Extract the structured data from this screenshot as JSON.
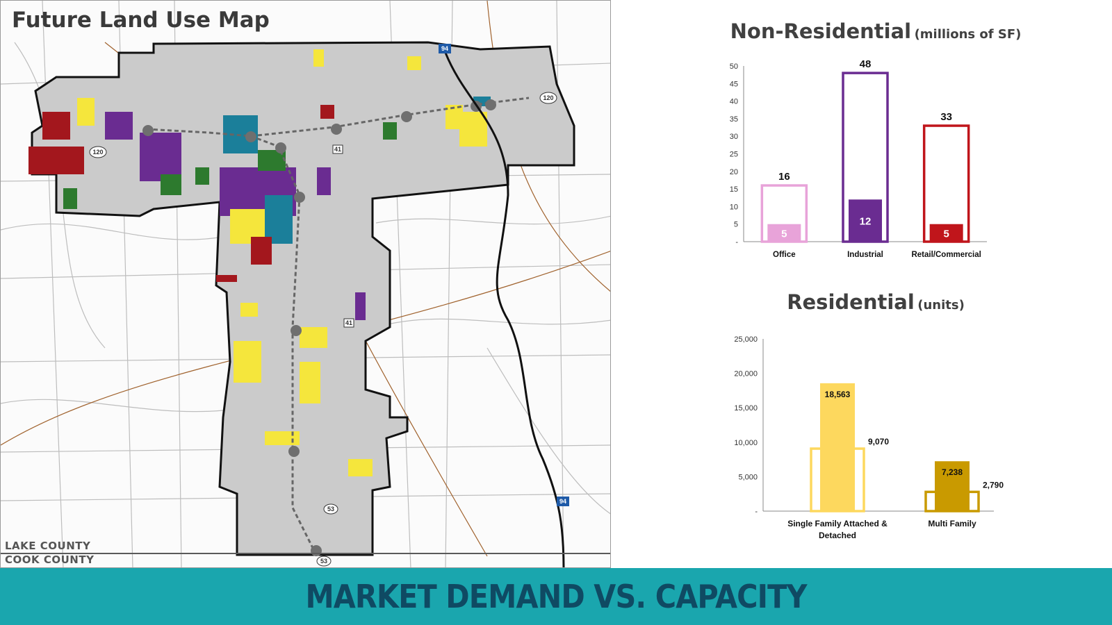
{
  "map": {
    "title": "Future Land Use Map",
    "county_north": "LAKE COUNTY",
    "county_south": "COOK COUNTY",
    "highway_shields": [
      "94",
      "120",
      "120",
      "41",
      "41",
      "53",
      "53",
      "94"
    ],
    "colors": {
      "base": "#c8c8c8",
      "industrial": "#6a2c91",
      "residential": "#f5e63c",
      "commercial": "#a3171d",
      "office": "#1b7f9a",
      "green": "#2d7a2e"
    }
  },
  "chart_data": [
    {
      "type": "bar",
      "title": "Non-Residential",
      "unit_note": "(millions of SF)",
      "categories": [
        "Office",
        "Industrial",
        "Retail/Commercial"
      ],
      "series": [
        {
          "values": [
            16,
            48,
            33
          ],
          "colors": [
            "#e8a3d9",
            "#6a2c91",
            "#c0151b"
          ],
          "style": "outline"
        },
        {
          "values": [
            5,
            12,
            5
          ],
          "colors": [
            "#e8a3d9",
            "#6a2c91",
            "#c0151b"
          ],
          "style": "filled"
        }
      ],
      "ylim": [
        0,
        50
      ],
      "yticks": [
        "-",
        "5",
        "10",
        "15",
        "20",
        "25",
        "30",
        "35",
        "40",
        "45",
        "50"
      ],
      "grid": false
    },
    {
      "type": "bar",
      "title": "Residential",
      "unit_note": "(units)",
      "categories": [
        "Single Family Attached & Detached",
        "Multi Family"
      ],
      "series": [
        {
          "values": [
            18563,
            7238
          ],
          "labels": [
            "18,563",
            "7,238"
          ],
          "colors": [
            "#fdd85e",
            "#c99a00"
          ],
          "style": "filled"
        },
        {
          "values": [
            9070,
            2790
          ],
          "labels": [
            "9,070",
            "2,790"
          ],
          "colors": [
            "#fdd85e",
            "#c99a00"
          ],
          "style": "outline"
        }
      ],
      "ylim": [
        0,
        25000
      ],
      "yticks": [
        "-",
        "5,000",
        "10,000",
        "15,000",
        "20,000",
        "25,000"
      ],
      "grid": false
    }
  ],
  "footer": {
    "text": "MARKET DEMAND VS. CAPACITY",
    "color": "#1aa6ae"
  }
}
